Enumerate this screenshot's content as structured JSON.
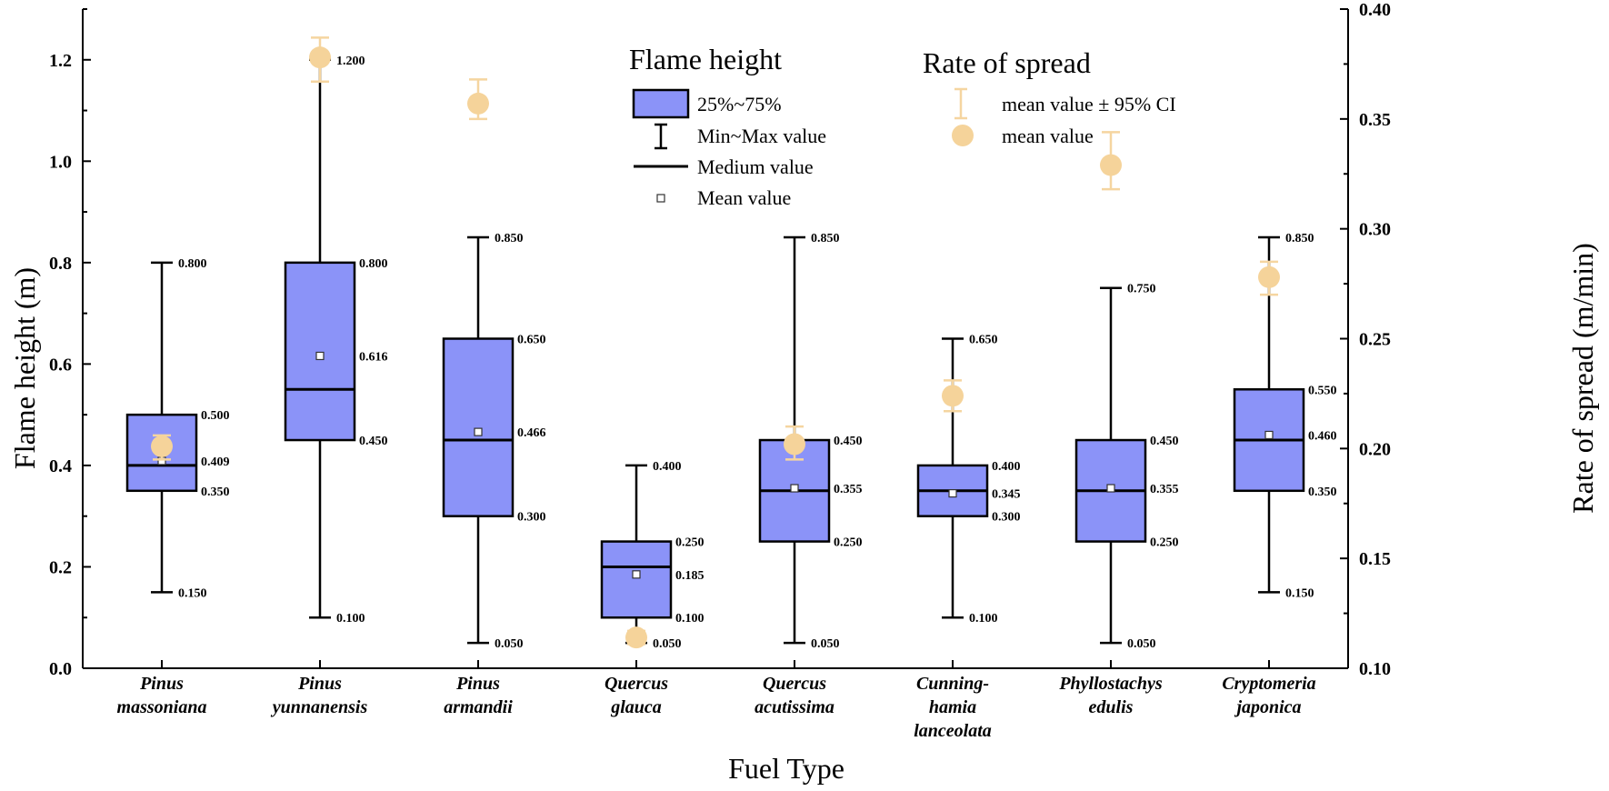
{
  "chart_data": {
    "type": "box",
    "xlabel": "Fuel Type",
    "ylabel_left": "Flame height (m)",
    "ylabel_right": "Rate of spread (m/min)",
    "ylim_left": [
      0,
      1.3
    ],
    "ylim_right": [
      0.1,
      0.4
    ],
    "yticks_left": [
      "0.0",
      "0.2",
      "0.4",
      "0.6",
      "0.8",
      "1.0",
      "1.2"
    ],
    "yticks_right": [
      "0.10",
      "0.15",
      "0.20",
      "0.25",
      "0.30",
      "0.35",
      "0.40"
    ],
    "categories": [
      {
        "line1": "Pinus",
        "line2": "massoniana",
        "line3": ""
      },
      {
        "line1": "Pinus",
        "line2": "yunnanensis",
        "line3": ""
      },
      {
        "line1": "Pinus",
        "line2": "armandii",
        "line3": ""
      },
      {
        "line1": "Quercus",
        "line2": "glauca",
        "line3": ""
      },
      {
        "line1": "Quercus",
        "line2": "acutissima",
        "line3": ""
      },
      {
        "line1": "Cunning-",
        "line2": "hamia",
        "line3": "lanceolata"
      },
      {
        "line1": "Phyllostachys",
        "line2": "edulis",
        "line3": ""
      },
      {
        "line1": "Cryptomeria",
        "line2": "japonica",
        "line3": ""
      }
    ],
    "flame_height": [
      {
        "min": 0.15,
        "q1": 0.35,
        "median": 0.4,
        "q3": 0.5,
        "max": 0.8,
        "mean": 0.409,
        "labels": {
          "max": "0.800",
          "q3": "0.500",
          "mean": "0.409",
          "q1": "0.350",
          "min": "0.150"
        }
      },
      {
        "min": 0.1,
        "q1": 0.45,
        "median": 0.55,
        "q3": 0.8,
        "max": 1.2,
        "mean": 0.616,
        "labels": {
          "max": "1.200",
          "q3": "0.800",
          "mean": "0.616",
          "q1": "0.450",
          "min": "0.100"
        }
      },
      {
        "min": 0.05,
        "q1": 0.3,
        "median": 0.45,
        "q3": 0.65,
        "max": 0.85,
        "mean": 0.466,
        "labels": {
          "max": "0.850",
          "q3": "0.650",
          "mean": "0.466",
          "q1": "0.300",
          "min": "0.050"
        }
      },
      {
        "min": 0.05,
        "q1": 0.1,
        "median": 0.2,
        "q3": 0.25,
        "max": 0.4,
        "mean": 0.185,
        "labels": {
          "max": "0.400",
          "q3": "0.250",
          "mean": "0.185",
          "q1": "0.100",
          "min": "0.050"
        }
      },
      {
        "min": 0.05,
        "q1": 0.25,
        "median": 0.35,
        "q3": 0.45,
        "max": 0.85,
        "mean": 0.355,
        "labels": {
          "max": "0.850",
          "q3": "0.450",
          "mean": "0.355",
          "q1": "0.250",
          "min": "0.050"
        }
      },
      {
        "min": 0.1,
        "q1": 0.3,
        "median": 0.35,
        "q3": 0.4,
        "max": 0.65,
        "mean": 0.345,
        "labels": {
          "max": "0.650",
          "q3": "0.400",
          "mean": "0.345",
          "q1": "0.300",
          "min": "0.100"
        }
      },
      {
        "min": 0.05,
        "q1": 0.25,
        "median": 0.35,
        "q3": 0.45,
        "max": 0.75,
        "mean": 0.355,
        "labels": {
          "max": "0.750",
          "q3": "0.450",
          "mean": "0.355",
          "q1": "0.250",
          "min": "0.050"
        }
      },
      {
        "min": 0.15,
        "q1": 0.35,
        "median": 0.45,
        "q3": 0.55,
        "max": 0.85,
        "mean": 0.46,
        "labels": {
          "max": "0.850",
          "q3": "0.550",
          "mean": "0.460",
          "q1": "0.350",
          "min": "0.150"
        }
      }
    ],
    "rate_of_spread": [
      {
        "mean": 0.201,
        "ci_low": 0.195,
        "ci_high": 0.206
      },
      {
        "mean": 0.378,
        "ci_low": 0.367,
        "ci_high": 0.387
      },
      {
        "mean": 0.357,
        "ci_low": 0.35,
        "ci_high": 0.368
      },
      {
        "mean": 0.114,
        "ci_low": 0.111,
        "ci_high": 0.117
      },
      {
        "mean": 0.202,
        "ci_low": 0.195,
        "ci_high": 0.21
      },
      {
        "mean": 0.224,
        "ci_low": 0.217,
        "ci_high": 0.231
      },
      {
        "mean": 0.329,
        "ci_low": 0.318,
        "ci_high": 0.344
      },
      {
        "mean": 0.278,
        "ci_low": 0.27,
        "ci_high": 0.285
      }
    ],
    "legend": {
      "flame_title": "Flame height",
      "flame_items": [
        "25%~75%",
        "Min~Max value",
        "Medium value",
        "Mean value"
      ],
      "ros_title": "Rate of spread",
      "ros_items": [
        "mean value ± 95% CI",
        "mean value"
      ]
    },
    "colors": {
      "box_fill": "#8B93F8",
      "ros_marker": "#F5D39A",
      "ros_ci": "#F5D5A0"
    }
  }
}
